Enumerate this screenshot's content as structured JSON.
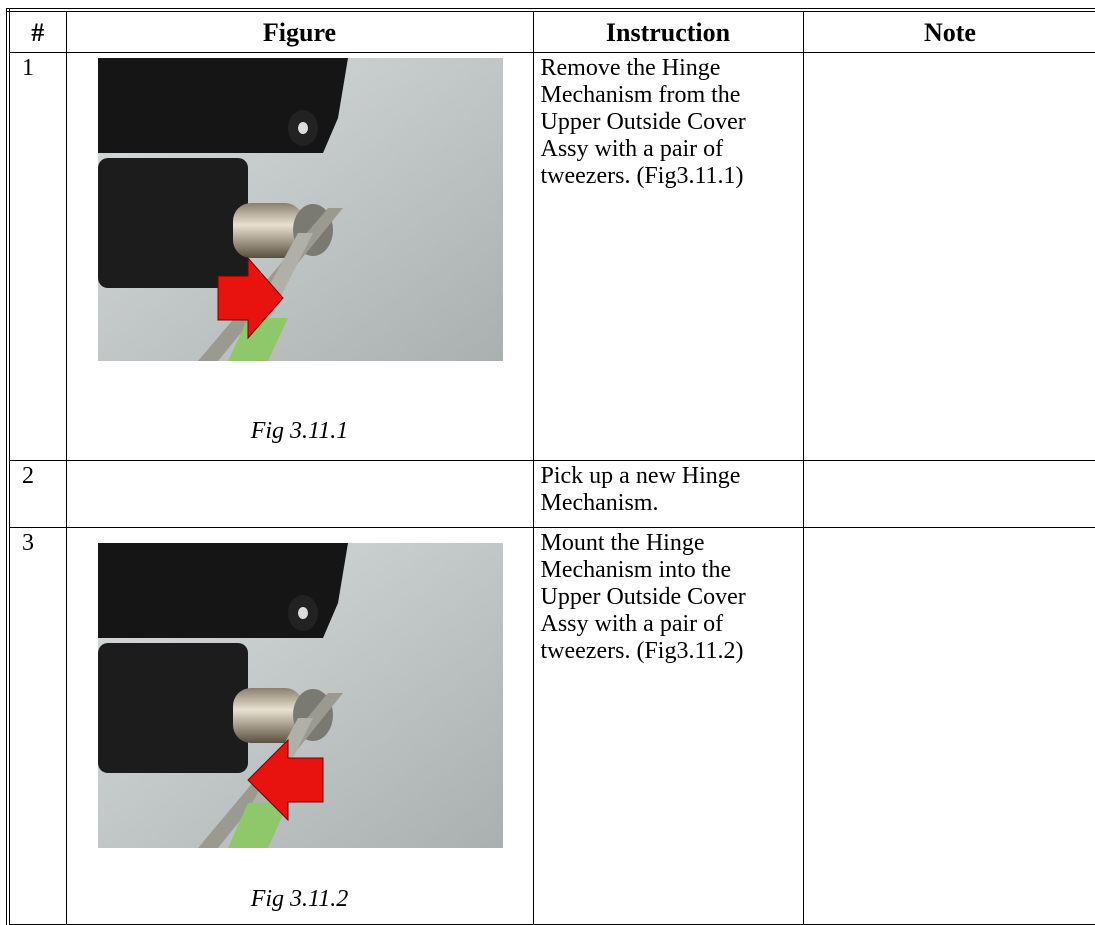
{
  "table": {
    "header": [
      "#",
      "Figure",
      "Instruction",
      "Note"
    ],
    "rows": [
      {
        "number": "1",
        "caption": "Fig 3.11.1",
        "instruction": "Remove the Hinge Mechanism from the Upper Outside Cover Assy with a pair of tweezers. (Fig3.11.1)"
      },
      {
        "number": "2",
        "instruction": "Pick up a new Hinge Mechanism."
      },
      {
        "number": "3",
        "caption": "Fig 3.11.2",
        "instruction": "Mount the Hinge Mechanism into the Upper Outside Cover Assy with a pair of tweezers. (Fig3.11.2)"
      }
    ]
  }
}
